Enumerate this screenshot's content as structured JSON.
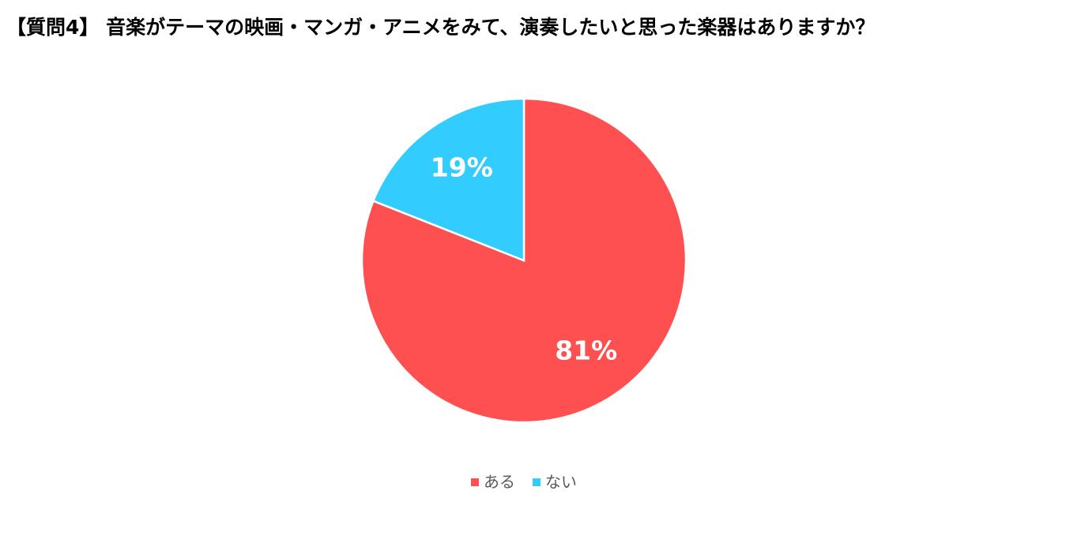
{
  "chart_data": {
    "type": "pie",
    "title": "【質問4】 音楽がテーマの映画・マンガ・アニメをみて、演奏したいと思った楽器はありますか？",
    "categories": [
      "ある",
      "ない"
    ],
    "values": [
      81,
      19
    ],
    "value_labels": [
      "81%",
      "19%"
    ],
    "colors": [
      "#fe5050",
      "#33ccff"
    ],
    "legend": "bottom"
  }
}
